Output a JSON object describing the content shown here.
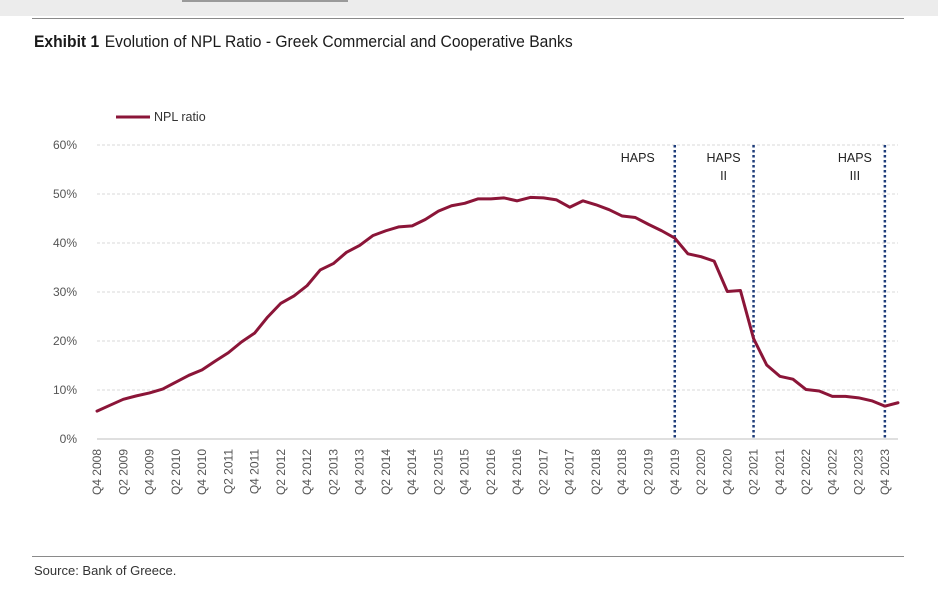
{
  "header": {
    "exhibit_number": "Exhibit 1",
    "title": "Evolution of NPL Ratio - Greek Commercial and Cooperative Banks"
  },
  "footer": {
    "source": "Source: Bank of Greece."
  },
  "colors": {
    "series": "#8b1538",
    "vline": "#1f3d7a",
    "grid": "#d9d9d9",
    "axis": "#bfbfbf"
  },
  "chart_data": {
    "type": "line",
    "legend_position": "top-left",
    "grid": true,
    "ylim": [
      0,
      60
    ],
    "yticks": [
      "0%",
      "10%",
      "20%",
      "30%",
      "40%",
      "50%",
      "60%"
    ],
    "xticklabels": [
      "Q4 2008",
      "Q2 2009",
      "Q4 2009",
      "Q2 2010",
      "Q4 2010",
      "Q2 2011",
      "Q4 2011",
      "Q2 2012",
      "Q4 2012",
      "Q2 2013",
      "Q4 2013",
      "Q2 2014",
      "Q4 2014",
      "Q2 2015",
      "Q4 2015",
      "Q2 2016",
      "Q4 2016",
      "Q2 2017",
      "Q4 2017",
      "Q2 2018",
      "Q4 2018",
      "Q2 2019",
      "Q4 2019",
      "Q2 2020",
      "Q4 2020",
      "Q2 2021",
      "Q4 2021",
      "Q2 2022",
      "Q4 2022",
      "Q2 2023",
      "Q4 2023"
    ],
    "x": [
      "Q4 2008",
      "Q1 2009",
      "Q2 2009",
      "Q3 2009",
      "Q4 2009",
      "Q1 2010",
      "Q2 2010",
      "Q3 2010",
      "Q4 2010",
      "Q1 2011",
      "Q2 2011",
      "Q3 2011",
      "Q4 2011",
      "Q1 2012",
      "Q2 2012",
      "Q3 2012",
      "Q4 2012",
      "Q1 2013",
      "Q2 2013",
      "Q3 2013",
      "Q4 2013",
      "Q1 2014",
      "Q2 2014",
      "Q3 2014",
      "Q4 2014",
      "Q1 2015",
      "Q2 2015",
      "Q3 2015",
      "Q4 2015",
      "Q1 2016",
      "Q2 2016",
      "Q3 2016",
      "Q4 2016",
      "Q1 2017",
      "Q2 2017",
      "Q3 2017",
      "Q4 2017",
      "Q1 2018",
      "Q2 2018",
      "Q3 2018",
      "Q4 2018",
      "Q1 2019",
      "Q2 2019",
      "Q3 2019",
      "Q4 2019",
      "Q1 2020",
      "Q2 2020",
      "Q3 2020",
      "Q4 2020",
      "Q1 2021",
      "Q2 2021",
      "Q3 2021",
      "Q4 2021",
      "Q1 2022",
      "Q2 2022",
      "Q3 2022",
      "Q4 2022",
      "Q1 2023",
      "Q2 2023",
      "Q3 2023",
      "Q4 2023",
      "Q1 2024"
    ],
    "series": [
      {
        "name": "NPL ratio",
        "color": "#8b1538",
        "values": [
          5.7,
          6.9,
          8.1,
          8.8,
          9.4,
          10.2,
          11.6,
          13.0,
          14.1,
          15.9,
          17.6,
          19.8,
          21.6,
          24.9,
          27.7,
          29.2,
          31.3,
          34.5,
          35.8,
          38.1,
          39.5,
          41.5,
          42.5,
          43.3,
          43.5,
          44.8,
          46.5,
          47.6,
          48.1,
          49.0,
          49.0,
          49.2,
          48.6,
          49.3,
          49.2,
          48.8,
          47.3,
          48.6,
          47.8,
          46.8,
          45.5,
          45.2,
          43.8,
          42.5,
          41.0,
          37.8,
          37.2,
          36.3,
          30.1,
          30.3,
          20.5,
          15.1,
          12.8,
          12.2,
          10.1,
          9.8,
          8.7,
          8.7,
          8.4,
          7.8,
          6.7,
          7.4
        ]
      }
    ],
    "annotations": [
      {
        "label_lines": [
          "HAPS"
        ],
        "at": "Q4 2019"
      },
      {
        "label_lines": [
          "HAPS",
          "II"
        ],
        "at": "Q2 2021"
      },
      {
        "label_lines": [
          "HAPS",
          "III"
        ],
        "at": "Q4 2023"
      }
    ]
  }
}
